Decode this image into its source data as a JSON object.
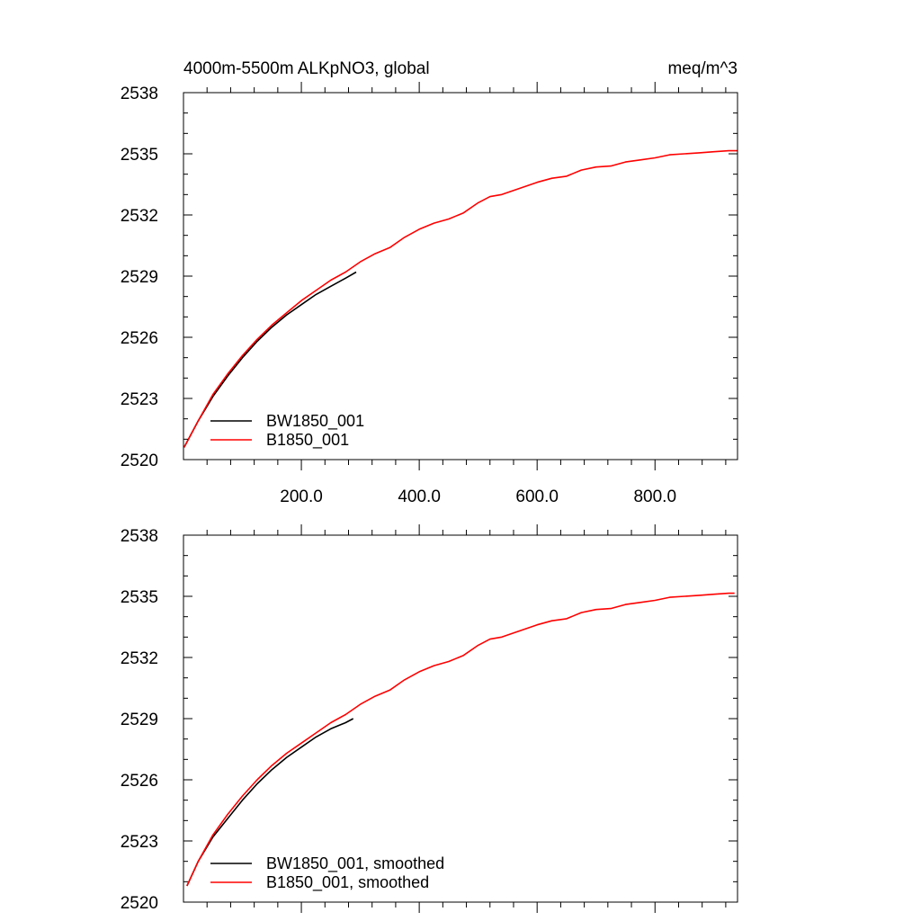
{
  "chart_data": [
    {
      "type": "line",
      "title": "4000m-5500m ALKpNO3, global",
      "units": "meq/m^3",
      "xlabel": "",
      "ylabel": "",
      "xlim": [
        0,
        940
      ],
      "ylim": [
        2520,
        2538
      ],
      "x_ticks": [
        200,
        400,
        600,
        800
      ],
      "x_tick_labels": [
        "200.0",
        "400.0",
        "600.0",
        "800.0"
      ],
      "y_ticks": [
        2520,
        2523,
        2526,
        2529,
        2532,
        2535,
        2538
      ],
      "y_tick_labels": [
        "2520",
        "2523",
        "2526",
        "2529",
        "2532",
        "2535",
        "2538"
      ],
      "legend_position": "bottom-left",
      "series": [
        {
          "name": "BW1850_001",
          "color": "#000000",
          "x": [
            1,
            25,
            50,
            75,
            100,
            125,
            150,
            175,
            200,
            225,
            250,
            275,
            293
          ],
          "y": [
            2520.6,
            2521.9,
            2523.1,
            2524.1,
            2525.0,
            2525.8,
            2526.5,
            2527.1,
            2527.6,
            2528.1,
            2528.5,
            2528.9,
            2529.2
          ]
        },
        {
          "name": "B1850_001",
          "color": "#ff0000",
          "x": [
            1,
            25,
            50,
            75,
            100,
            125,
            150,
            175,
            200,
            225,
            250,
            275,
            300,
            325,
            350,
            375,
            400,
            425,
            450,
            475,
            500,
            520,
            540,
            560,
            580,
            600,
            625,
            650,
            675,
            700,
            725,
            750,
            775,
            800,
            825,
            850,
            875,
            900,
            925,
            940
          ],
          "y": [
            2520.6,
            2521.9,
            2523.2,
            2524.2,
            2525.1,
            2525.9,
            2526.6,
            2527.2,
            2527.8,
            2528.3,
            2528.8,
            2529.2,
            2529.7,
            2530.1,
            2530.4,
            2530.9,
            2531.3,
            2531.6,
            2531.8,
            2532.1,
            2532.6,
            2532.9,
            2533.0,
            2533.2,
            2533.4,
            2533.6,
            2533.8,
            2533.9,
            2534.2,
            2534.35,
            2534.4,
            2534.6,
            2534.7,
            2534.8,
            2534.95,
            2535.0,
            2535.05,
            2535.1,
            2535.15,
            2535.15
          ]
        }
      ]
    },
    {
      "type": "line",
      "title": "",
      "xlabel": "",
      "ylabel": "",
      "xlim": [
        0,
        940
      ],
      "ylim": [
        2520,
        2538
      ],
      "x_ticks": [
        200,
        400,
        600,
        800
      ],
      "x_tick_labels": [],
      "y_ticks": [
        2520,
        2523,
        2526,
        2529,
        2532,
        2535,
        2538
      ],
      "y_tick_labels": [
        "2520",
        "2523",
        "2526",
        "2529",
        "2532",
        "2535",
        "2538"
      ],
      "legend_position": "bottom-left",
      "series": [
        {
          "name": "BW1850_001, smoothed",
          "color": "#000000",
          "x": [
            6,
            25,
            50,
            75,
            100,
            125,
            150,
            175,
            200,
            225,
            250,
            275,
            288
          ],
          "y": [
            2520.8,
            2522.0,
            2523.2,
            2524.1,
            2525.0,
            2525.8,
            2526.5,
            2527.1,
            2527.6,
            2528.1,
            2528.5,
            2528.8,
            2529.0
          ]
        },
        {
          "name": "B1850_001, smoothed",
          "color": "#ff0000",
          "x": [
            6,
            25,
            50,
            75,
            100,
            125,
            150,
            175,
            200,
            225,
            250,
            275,
            300,
            325,
            350,
            375,
            400,
            425,
            450,
            475,
            500,
            520,
            540,
            560,
            580,
            600,
            625,
            650,
            675,
            700,
            725,
            750,
            775,
            800,
            825,
            850,
            875,
            900,
            925,
            935
          ],
          "y": [
            2520.8,
            2522.0,
            2523.3,
            2524.3,
            2525.2,
            2526.0,
            2526.7,
            2527.3,
            2527.8,
            2528.3,
            2528.8,
            2529.2,
            2529.7,
            2530.1,
            2530.4,
            2530.9,
            2531.3,
            2531.6,
            2531.8,
            2532.1,
            2532.6,
            2532.9,
            2533.0,
            2533.2,
            2533.4,
            2533.6,
            2533.8,
            2533.9,
            2534.2,
            2534.35,
            2534.4,
            2534.6,
            2534.7,
            2534.8,
            2534.95,
            2535.0,
            2535.05,
            2535.1,
            2535.15,
            2535.15
          ]
        }
      ]
    }
  ]
}
